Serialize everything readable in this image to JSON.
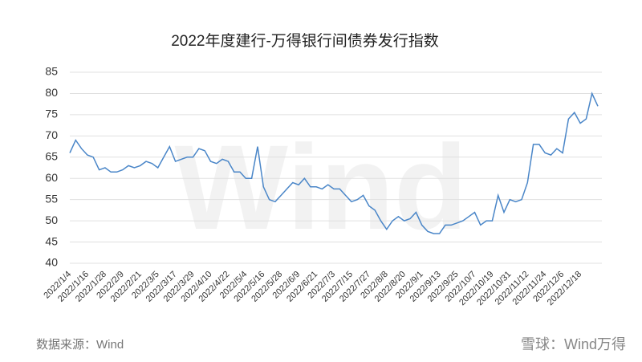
{
  "chart_data": {
    "type": "line",
    "title": "2022年度建行-万得银行间债券发行指数",
    "categories": [
      "2022/1/4",
      null,
      null,
      "2022/1/16",
      null,
      null,
      "2022/1/28",
      null,
      null,
      "2022/2/9",
      null,
      null,
      "2022/2/21",
      null,
      null,
      "2022/3/5",
      null,
      null,
      "2022/3/17",
      null,
      null,
      "2022/3/29",
      null,
      null,
      "2022/4/10",
      null,
      null,
      "2022/4/22",
      null,
      null,
      "2022/5/4",
      null,
      null,
      "2022/5/16",
      null,
      null,
      "2022/5/28",
      null,
      null,
      "2022/6/9",
      null,
      null,
      "2022/6/21",
      null,
      null,
      "2022/7/3",
      null,
      null,
      "2022/7/15",
      null,
      null,
      "2022/7/27",
      null,
      null,
      "2022/8/8",
      null,
      null,
      "2022/8/20",
      null,
      null,
      "2022/9/1",
      null,
      null,
      "2022/9/13",
      null,
      null,
      "2022/9/25",
      null,
      null,
      "2022/10/7",
      null,
      null,
      "2022/10/19",
      null,
      null,
      "2022/10/31",
      null,
      null,
      "2022/11/12",
      null,
      null,
      "2022/11/24",
      null,
      null,
      "2022/12/6",
      null,
      null,
      "2022/12/18",
      null,
      null,
      null
    ],
    "values": [
      66,
      69,
      67,
      65.5,
      65,
      62,
      62.5,
      61.5,
      61.5,
      62,
      63,
      62.5,
      63,
      64,
      63.5,
      62.5,
      65,
      67.5,
      64,
      64.5,
      65,
      65,
      67,
      66.5,
      64,
      63.5,
      64.5,
      64,
      61.5,
      61.5,
      60,
      60,
      67.5,
      58,
      55,
      54.5,
      56,
      57.5,
      59,
      58.5,
      60,
      58,
      58,
      57.5,
      58.5,
      57.5,
      57.5,
      56,
      54.5,
      55,
      56,
      53.5,
      52.5,
      50,
      48,
      50,
      51,
      50,
      50.5,
      52,
      49,
      47.5,
      47,
      47,
      49,
      49,
      49.5,
      50,
      51,
      52,
      49,
      50,
      50,
      56,
      52,
      55,
      54.5,
      55,
      59,
      68,
      68,
      66,
      65.5,
      67,
      66,
      74,
      75.5,
      73,
      74,
      80,
      77
    ],
    "color": "#4a86c8",
    "ylim": [
      40,
      85
    ],
    "yticks": [
      40,
      45,
      50,
      55,
      60,
      65,
      70,
      75,
      80,
      85
    ],
    "grid": true
  },
  "source": "数据来源：Wind",
  "watermark": "雪球：Wind万得",
  "background_mark": "Wind"
}
